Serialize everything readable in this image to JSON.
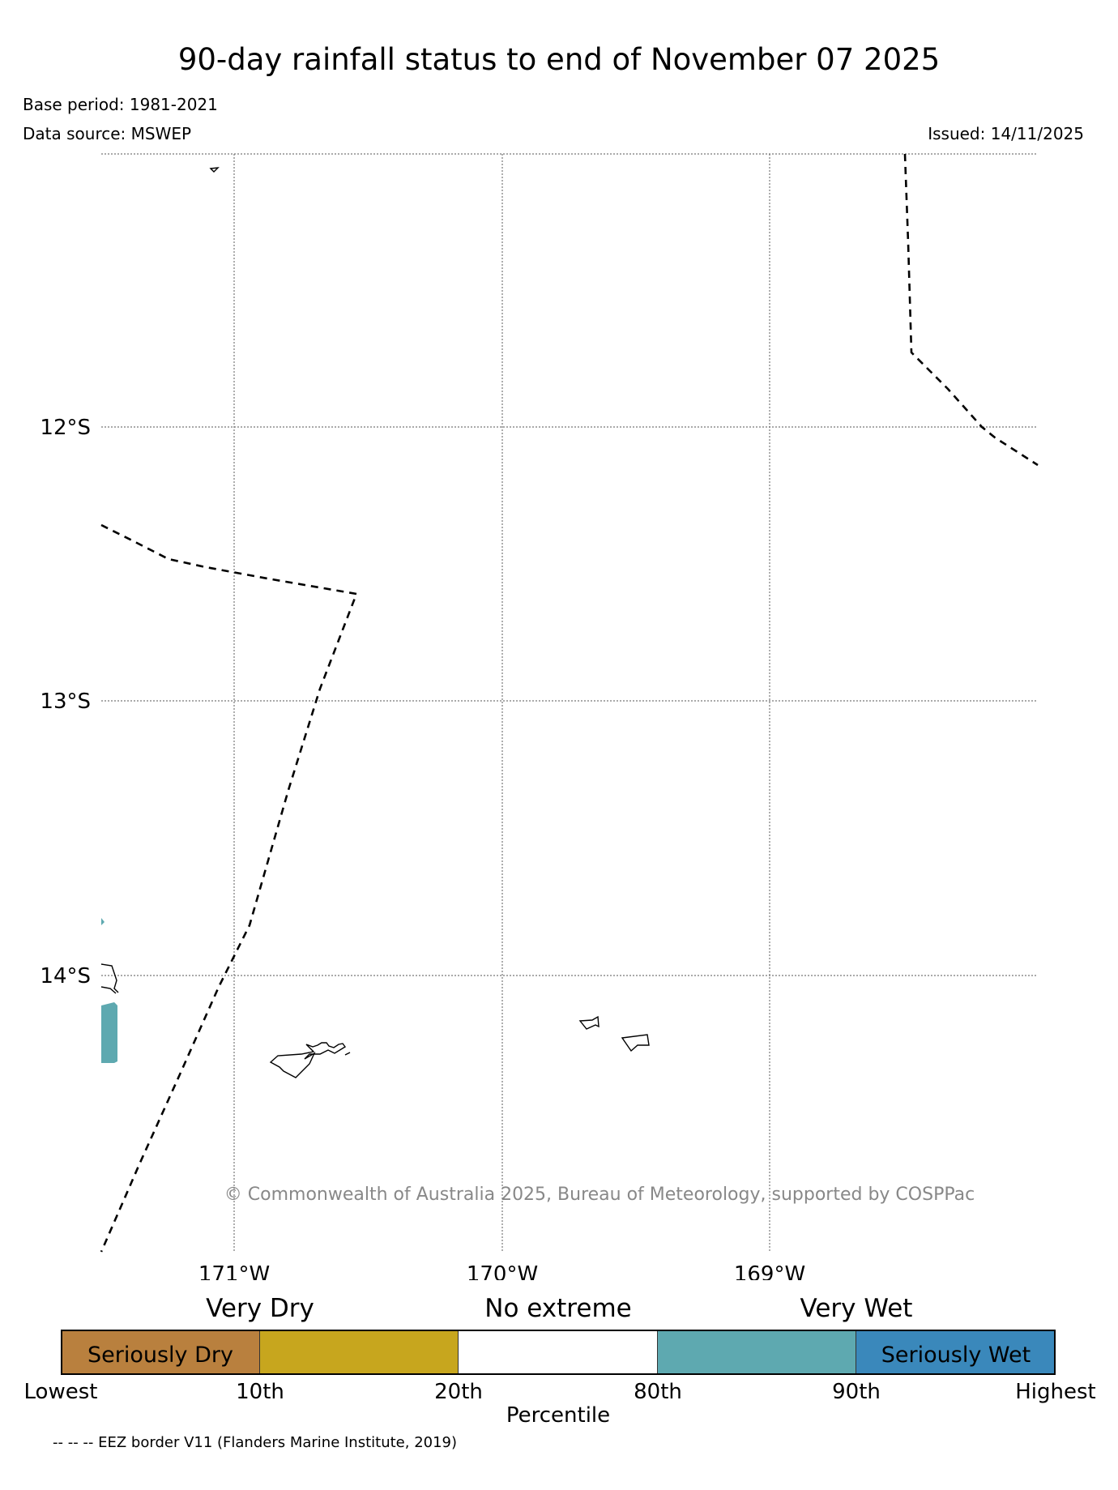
{
  "header": {
    "title": "90-day rainfall status to end of November 07 2025",
    "base_period": "Base period: 1981-2021",
    "data_source": "Data source: MSWEP",
    "issued": "Issued: 14/11/2025"
  },
  "map": {
    "lat_labels": [
      "12°S",
      "13°S",
      "14°S"
    ],
    "lon_labels": [
      "171°W",
      "170°W",
      "169°W"
    ],
    "copyright": "© Commonwealth of Australia 2025, Bureau of Meteorology, supported by COSPPac",
    "colors": {
      "very_wet": "#5ea9b0",
      "coastline": "#000000",
      "eez_border": "#000000",
      "gridline": "#777777"
    }
  },
  "legend": {
    "category_labels": [
      "Very Dry",
      "No extreme",
      "Very Wet"
    ],
    "segments": [
      {
        "label": "Seriously Dry",
        "color": "#b9803e"
      },
      {
        "label": "",
        "color": "#c7a61e"
      },
      {
        "label": "",
        "color": "#ffffff"
      },
      {
        "label": "",
        "color": "#5ea9b0"
      },
      {
        "label": "Seriously Wet",
        "color": "#3a88bb"
      }
    ],
    "tick_labels": [
      "Lowest",
      "10th",
      "20th",
      "80th",
      "90th",
      "Highest"
    ],
    "axis_label": "Percentile"
  },
  "footer": {
    "eez_note": "-- -- -- EEZ border V11 (Flanders Marine Institute, 2019)"
  }
}
